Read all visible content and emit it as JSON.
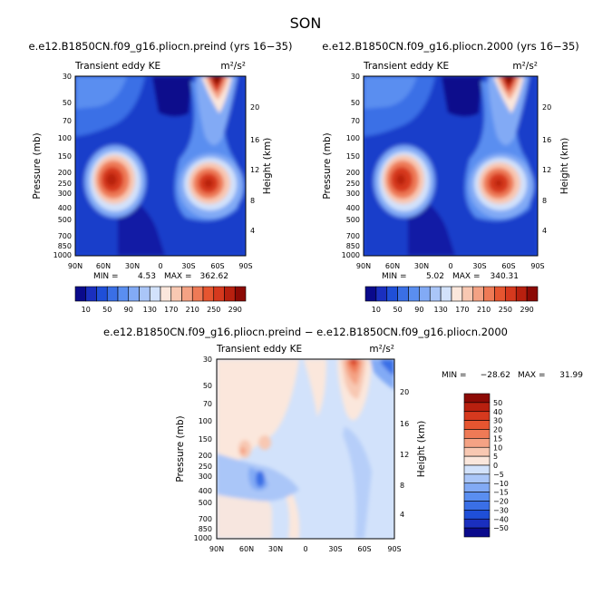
{
  "figure": {
    "season": "SON"
  },
  "chart_data": [
    {
      "type": "heatmap",
      "title": "e.e12.B1850CN.f09_g16.pliocn.preind (yrs 16−35)",
      "variable": "Transient eddy KE",
      "units": "m²/s²",
      "xlabel": "",
      "ylabel": "Pressure (mb)",
      "y2label": "Height (km)",
      "x_ticks": [
        "90N",
        "60N",
        "30N",
        "0",
        "30S",
        "60S",
        "90S"
      ],
      "y_ticks": [
        "30",
        "50",
        "70",
        "100",
        "150",
        "200",
        "250",
        "300",
        "400",
        "500",
        "700",
        "850",
        "1000"
      ],
      "y2_ticks": [
        "20",
        "16",
        "12",
        "8",
        "4"
      ],
      "ylim": [
        1000,
        30
      ],
      "xlim": [
        90,
        -90
      ],
      "min_label": "MIN =",
      "min": "4.53",
      "max_label": "MAX =",
      "max": "362.62",
      "colorbar": {
        "orientation": "horizontal",
        "levels": [
          "10",
          "50",
          "90",
          "130",
          "170",
          "210",
          "250",
          "290"
        ],
        "colors": [
          "#0a0a8c",
          "#1a2fbf",
          "#1f4fd8",
          "#3a6fe6",
          "#5a8ef0",
          "#82aaf5",
          "#aac6f8",
          "#d2e2fb",
          "#fbe7dc",
          "#f8c8b2",
          "#f4a284",
          "#ee7a56",
          "#e65530",
          "#d6391e",
          "#b8200f",
          "#8c0a05"
        ]
      },
      "features": [
        {
          "name": "nh-jet-maximum",
          "lat": 45,
          "pressure": 250
        },
        {
          "name": "sh-jet-maximum",
          "lat": -50,
          "pressure": 250
        },
        {
          "name": "sh-upper-maximum",
          "lat": -60,
          "pressure": 30
        }
      ]
    },
    {
      "type": "heatmap",
      "title": "e.e12.B1850CN.f09_g16.pliocn.2000 (yrs 16−35)",
      "variable": "Transient eddy KE",
      "units": "m²/s²",
      "xlabel": "",
      "ylabel": "Pressure (mb)",
      "y2label": "Height (km)",
      "x_ticks": [
        "90N",
        "60N",
        "30N",
        "0",
        "30S",
        "60S",
        "90S"
      ],
      "y_ticks": [
        "30",
        "50",
        "70",
        "100",
        "150",
        "200",
        "250",
        "300",
        "400",
        "500",
        "700",
        "850",
        "1000"
      ],
      "y2_ticks": [
        "20",
        "16",
        "12",
        "8",
        "4"
      ],
      "ylim": [
        1000,
        30
      ],
      "xlim": [
        90,
        -90
      ],
      "min_label": "MIN =",
      "min": "5.02",
      "max_label": "MAX =",
      "max": "340.31",
      "colorbar": {
        "orientation": "horizontal",
        "levels": [
          "10",
          "50",
          "90",
          "130",
          "170",
          "210",
          "250",
          "290"
        ],
        "colors": [
          "#0a0a8c",
          "#1a2fbf",
          "#1f4fd8",
          "#3a6fe6",
          "#5a8ef0",
          "#82aaf5",
          "#aac6f8",
          "#d2e2fb",
          "#fbe7dc",
          "#f8c8b2",
          "#f4a284",
          "#ee7a56",
          "#e65530",
          "#d6391e",
          "#b8200f",
          "#8c0a05"
        ]
      },
      "features": [
        {
          "name": "nh-jet-maximum",
          "lat": 45,
          "pressure": 250
        },
        {
          "name": "sh-jet-maximum",
          "lat": -50,
          "pressure": 250
        },
        {
          "name": "sh-upper-maximum",
          "lat": -60,
          "pressure": 30
        }
      ]
    },
    {
      "type": "heatmap",
      "title": "e.e12.B1850CN.f09_g16.pliocn.preind − e.e12.B1850CN.f09_g16.pliocn.2000",
      "variable": "Transient eddy KE",
      "units": "m²/s²",
      "xlabel": "",
      "ylabel": "Pressure (mb)",
      "y2label": "Height (km)",
      "x_ticks": [
        "90N",
        "60N",
        "30N",
        "0",
        "30S",
        "60S",
        "90S"
      ],
      "y_ticks": [
        "30",
        "50",
        "70",
        "100",
        "150",
        "200",
        "250",
        "300",
        "400",
        "500",
        "700",
        "850",
        "1000"
      ],
      "y2_ticks": [
        "20",
        "16",
        "12",
        "8",
        "4"
      ],
      "ylim": [
        1000,
        30
      ],
      "xlim": [
        90,
        -90
      ],
      "min_label": "MIN =",
      "min": "−28.62",
      "max_label": "MAX =",
      "max": "31.99",
      "colorbar": {
        "orientation": "vertical",
        "levels": [
          "50",
          "40",
          "30",
          "20",
          "15",
          "10",
          "5",
          "0",
          "−5",
          "−10",
          "−15",
          "−20",
          "−30",
          "−40",
          "−50"
        ],
        "colors": [
          "#8c0a05",
          "#b8200f",
          "#d6391e",
          "#e65530",
          "#ee7a56",
          "#f4a284",
          "#f8c8b2",
          "#fbe7dc",
          "#d2e2fb",
          "#aac6f8",
          "#82aaf5",
          "#5a8ef0",
          "#3a6fe6",
          "#1f4fd8",
          "#1a2fbf",
          "#0a0a8c"
        ]
      }
    }
  ]
}
